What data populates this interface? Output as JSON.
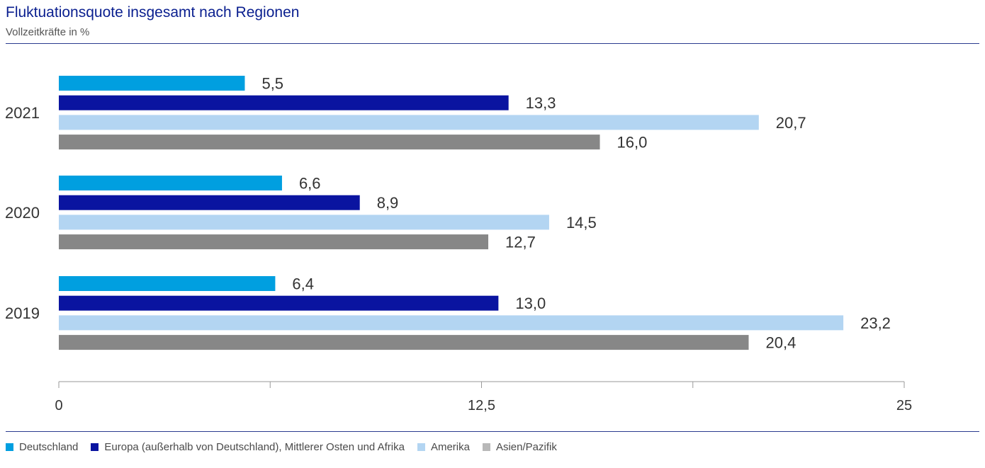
{
  "header": {
    "title": "Fluktuationsquote insgesamt nach Regionen",
    "subtitle": "Vollzeitkräfte in %"
  },
  "chart_data": {
    "type": "bar",
    "orientation": "horizontal",
    "title": "Fluktuationsquote insgesamt nach Regionen",
    "subtitle": "Vollzeitkräfte in %",
    "xlabel": "",
    "ylabel": "",
    "xlim": [
      0,
      25
    ],
    "x_ticks": [
      0,
      12.5,
      25
    ],
    "x_tick_labels": [
      "0",
      "12,5",
      "25"
    ],
    "minor_ticks": [
      6.25,
      18.75
    ],
    "categories": [
      "2021",
      "2020",
      "2019"
    ],
    "series": [
      {
        "name": "Deutschland",
        "color": "#009fe0",
        "values": [
          5.5,
          6.6,
          6.4
        ],
        "labels": [
          "5,5",
          "6,6",
          "6,4"
        ]
      },
      {
        "name": "Europa (außerhalb von Deutschland), Mittlerer Osten und Afrika",
        "color": "#0a14a0",
        "values": [
          13.3,
          8.9,
          13.0
        ],
        "labels": [
          "13,3",
          "8,9",
          "13,0"
        ]
      },
      {
        "name": "Amerika",
        "color": "#b3d5f2",
        "values": [
          20.7,
          14.5,
          23.2
        ],
        "labels": [
          "20,7",
          "14,5",
          "23,2"
        ]
      },
      {
        "name": "Asien/Pazifik",
        "color": "#878787",
        "values": [
          16.0,
          12.7,
          20.4
        ],
        "labels": [
          "16,0",
          "12,7",
          "20,4"
        ]
      }
    ],
    "legend": {
      "position": "bottom",
      "swatch_colors": [
        "#009fe0",
        "#0a14a0",
        "#b3d5f2",
        "#b8b8b8"
      ]
    }
  }
}
